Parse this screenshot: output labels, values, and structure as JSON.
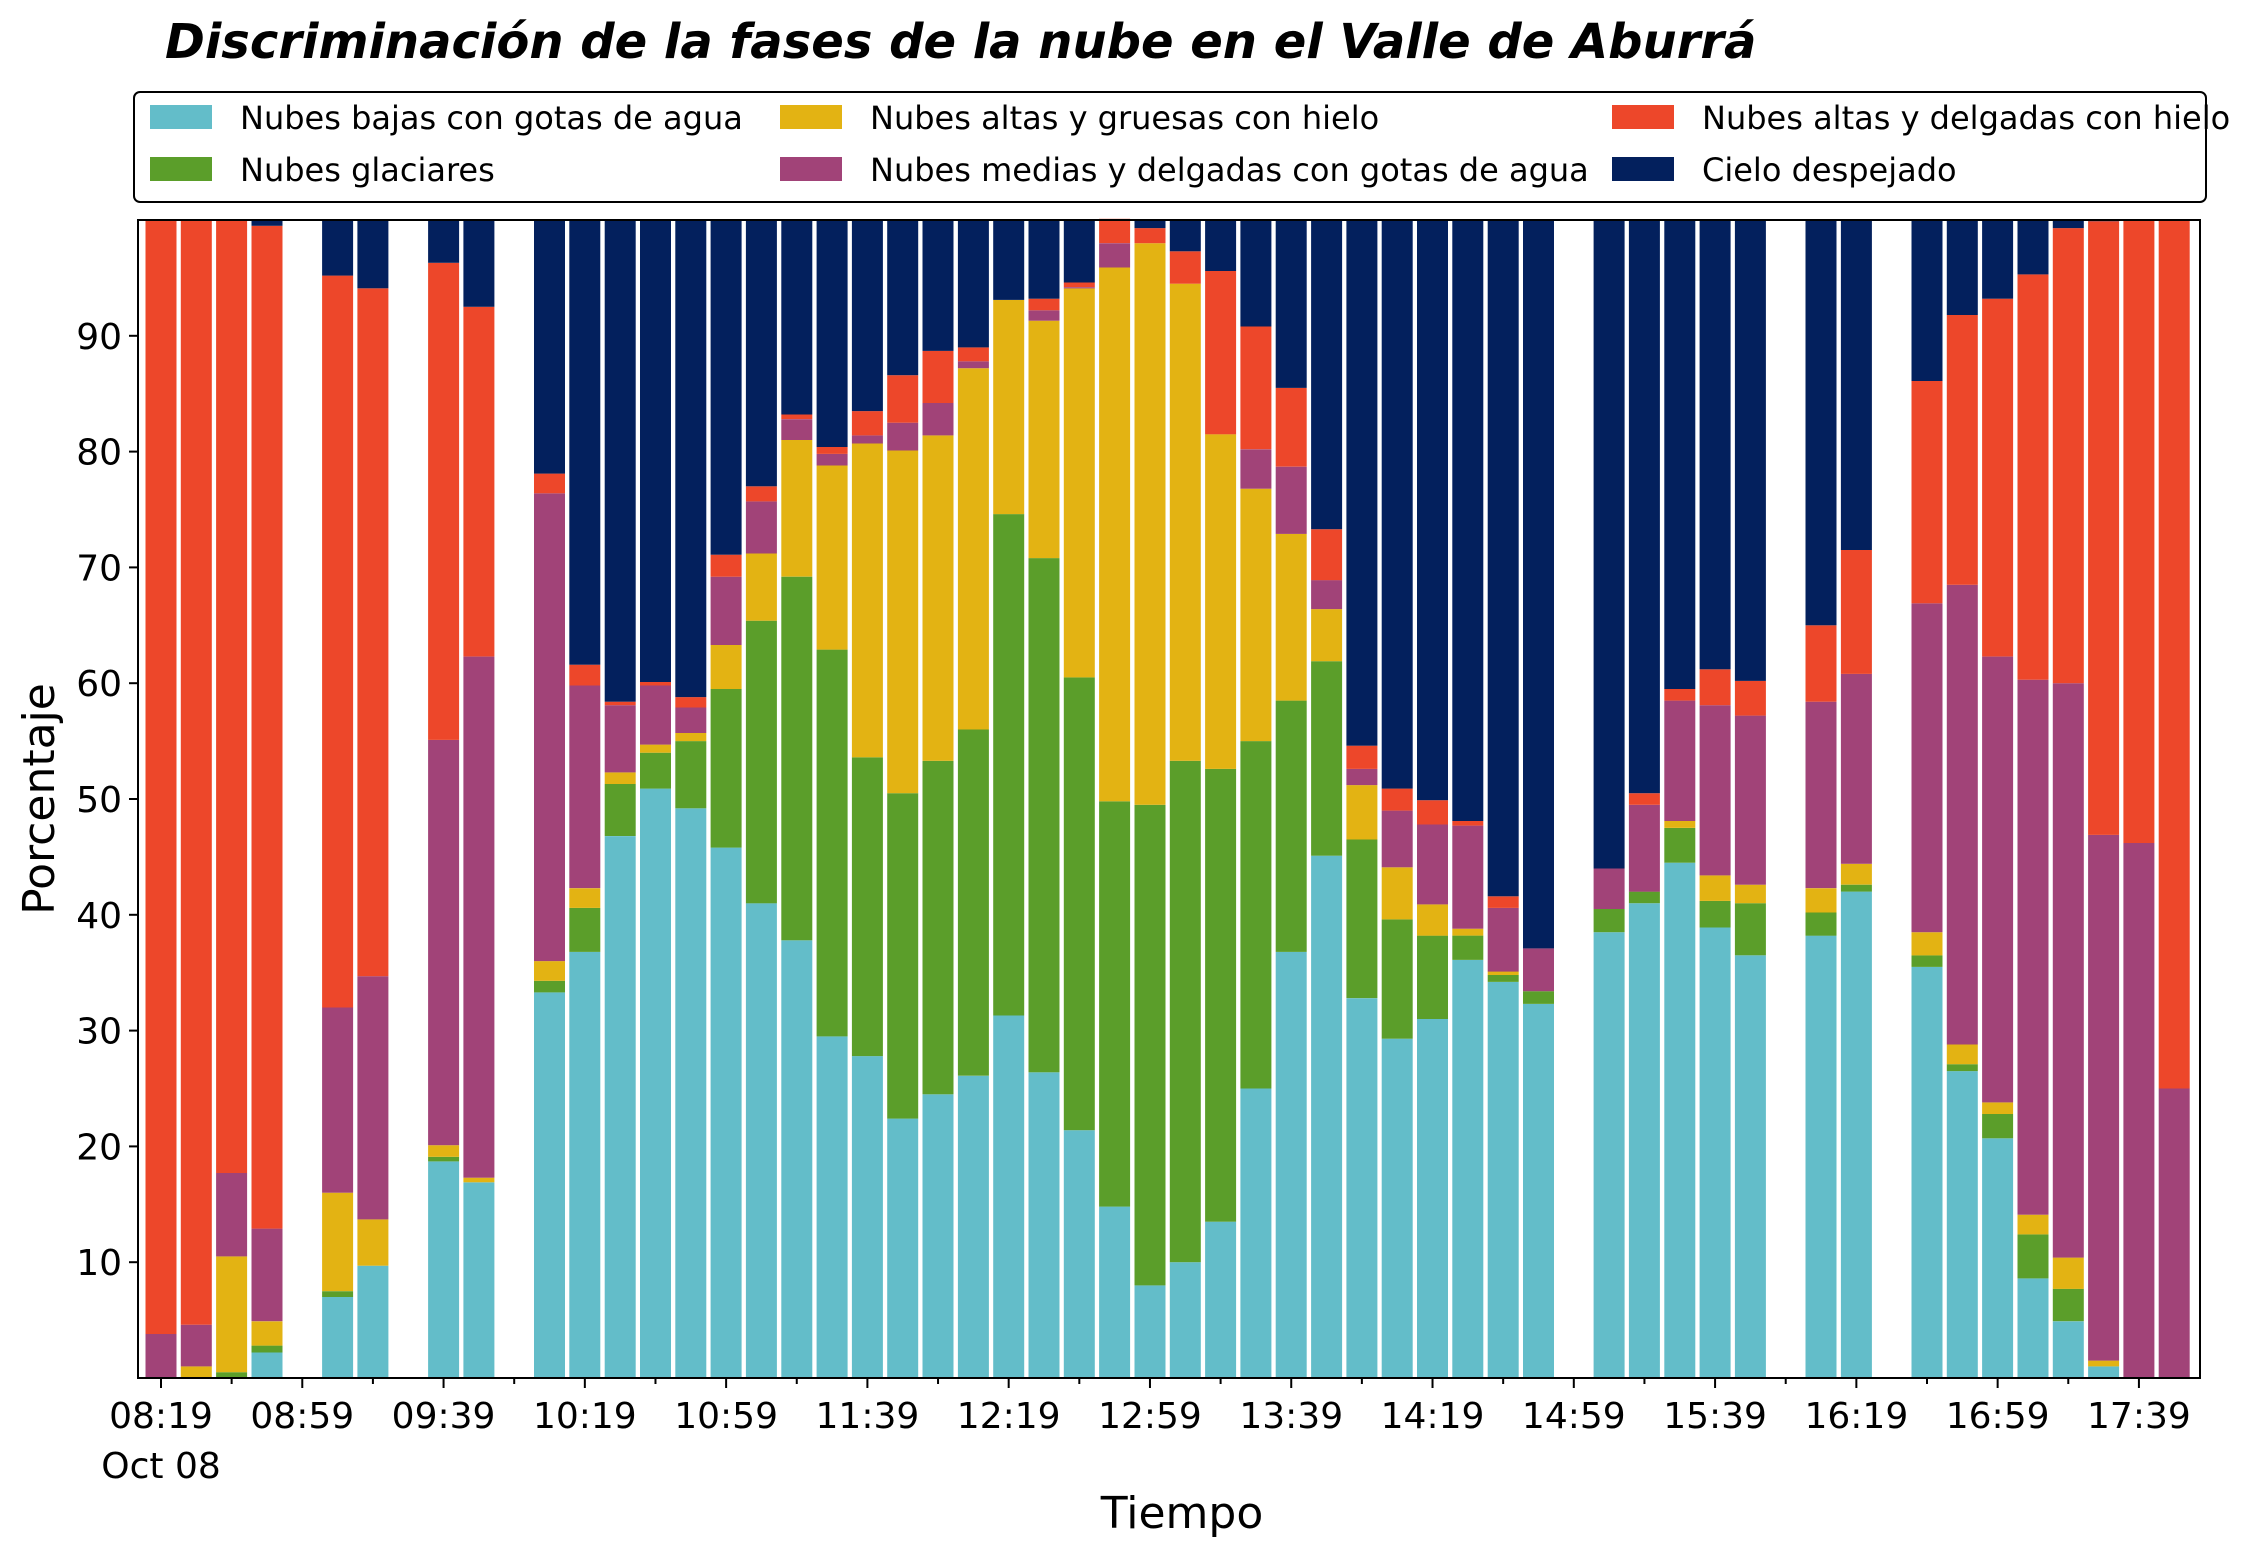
{
  "chart_data": {
    "type": "bar",
    "stacked": true,
    "title": "Discriminación de la fases de la nube en el Valle de Aburrá",
    "xlabel": "Tiempo",
    "ylabel": "Porcentaje",
    "ylim": [
      0,
      100
    ],
    "yticks": [
      10,
      20,
      30,
      40,
      50,
      60,
      70,
      80,
      90
    ],
    "xticks": [
      {
        "minute": 0,
        "label": "08:19",
        "sublabel": "Oct 08"
      },
      {
        "minute": 40,
        "label": "08:59",
        "sublabel": ""
      },
      {
        "minute": 80,
        "label": "09:39",
        "sublabel": ""
      },
      {
        "minute": 120,
        "label": "10:19",
        "sublabel": ""
      },
      {
        "minute": 160,
        "label": "10:59",
        "sublabel": ""
      },
      {
        "minute": 200,
        "label": "11:39",
        "sublabel": ""
      },
      {
        "minute": 240,
        "label": "12:19",
        "sublabel": ""
      },
      {
        "minute": 280,
        "label": "12:59",
        "sublabel": ""
      },
      {
        "minute": 320,
        "label": "13:39",
        "sublabel": ""
      },
      {
        "minute": 360,
        "label": "14:19",
        "sublabel": ""
      },
      {
        "minute": 400,
        "label": "14:59",
        "sublabel": ""
      },
      {
        "minute": 440,
        "label": "15:39",
        "sublabel": ""
      },
      {
        "minute": 480,
        "label": "16:19",
        "sublabel": ""
      },
      {
        "minute": 520,
        "label": "16:59",
        "sublabel": ""
      },
      {
        "minute": 560,
        "label": "17:39",
        "sublabel": ""
      }
    ],
    "legend_placement": "top",
    "grid": false,
    "series": [
      {
        "name": "Nubes bajas con gotas de agua",
        "color": "#63bdc9"
      },
      {
        "name": "Nubes glaciares",
        "color": "#5b9e2a"
      },
      {
        "name": "Nubes altas y gruesas con hielo",
        "color": "#e3b313"
      },
      {
        "name": "Nubes medias y delgadas con gotas de agua",
        "color": "#a14378"
      },
      {
        "name": "Nubes altas y delgadas con hielo",
        "color": "#ed472a"
      },
      {
        "name": "Cielo despejado",
        "color": "#03205d"
      }
    ],
    "bars": [
      {
        "t": "08:19",
        "values": [
          0,
          0,
          0,
          3.8,
          96.2,
          0
        ]
      },
      {
        "t": "08:29",
        "values": [
          0,
          0,
          1,
          3.6,
          95.4,
          0
        ]
      },
      {
        "t": "08:39",
        "values": [
          0,
          0.5,
          10,
          7.2,
          82.3,
          0
        ]
      },
      {
        "t": "08:49",
        "values": [
          2.2,
          0.6,
          2.1,
          8,
          86.6,
          0.5
        ]
      },
      {
        "t": "09:09",
        "values": [
          7,
          0.5,
          8.5,
          16,
          63.2,
          4.8
        ]
      },
      {
        "t": "09:19",
        "values": [
          9.7,
          0,
          4,
          21,
          59.4,
          5.9
        ]
      },
      {
        "t": "09:39",
        "values": [
          18.7,
          0.4,
          1,
          35,
          41.2,
          3.7
        ]
      },
      {
        "t": "09:49",
        "values": [
          16.9,
          0,
          0.4,
          45,
          30.2,
          7.5
        ]
      },
      {
        "t": "10:09",
        "values": [
          33.3,
          1,
          1.7,
          40.4,
          1.7,
          21.9
        ]
      },
      {
        "t": "10:19",
        "values": [
          36.8,
          3.8,
          1.7,
          17.5,
          1.8,
          38.4
        ]
      },
      {
        "t": "10:29",
        "values": [
          46.8,
          4.5,
          1,
          5.8,
          0.3,
          41.6
        ]
      },
      {
        "t": "10:39",
        "values": [
          50.9,
          3.1,
          0.7,
          5.1,
          0.3,
          39.9
        ]
      },
      {
        "t": "10:49",
        "values": [
          49.2,
          5.8,
          0.7,
          2.2,
          0.9,
          41.2
        ]
      },
      {
        "t": "10:59",
        "values": [
          45.8,
          13.7,
          3.8,
          5.9,
          1.9,
          28.9
        ]
      },
      {
        "t": "11:09",
        "values": [
          41,
          24.4,
          5.8,
          4.5,
          1.3,
          23
        ]
      },
      {
        "t": "11:19",
        "values": [
          37.8,
          31.4,
          11.8,
          1.8,
          0.4,
          16.8
        ]
      },
      {
        "t": "11:29",
        "values": [
          29.5,
          33.4,
          15.9,
          1,
          0.6,
          19.6
        ]
      },
      {
        "t": "11:39",
        "values": [
          27.8,
          25.8,
          27.1,
          0.7,
          2.1,
          16.5
        ]
      },
      {
        "t": "11:49",
        "values": [
          22.4,
          28.1,
          29.6,
          2.4,
          4.1,
          13.4
        ]
      },
      {
        "t": "11:59",
        "values": [
          24.5,
          28.8,
          28.1,
          2.8,
          4.5,
          11.3
        ]
      },
      {
        "t": "12:09",
        "values": [
          26.1,
          29.9,
          31.2,
          0.6,
          1.2,
          11
        ]
      },
      {
        "t": "12:19",
        "values": [
          31.3,
          43.3,
          18.5,
          0,
          0,
          6.9
        ]
      },
      {
        "t": "12:29",
        "values": [
          26.4,
          44.4,
          20.5,
          0.9,
          1,
          6.8
        ]
      },
      {
        "t": "12:39",
        "values": [
          21.4,
          39.1,
          33.6,
          0.1,
          0.4,
          5.4
        ]
      },
      {
        "t": "12:49",
        "values": [
          14.8,
          35,
          46.1,
          2.1,
          2.1,
          0
        ]
      },
      {
        "t": "12:59",
        "values": [
          8,
          41.5,
          48.5,
          0,
          1.3,
          0.7
        ]
      },
      {
        "t": "13:09",
        "values": [
          10,
          43.3,
          41.2,
          0,
          2.8,
          2.7
        ]
      },
      {
        "t": "13:19",
        "values": [
          13.5,
          39.1,
          28.9,
          0,
          14.1,
          4.4
        ]
      },
      {
        "t": "13:29",
        "values": [
          25,
          30,
          21.8,
          3.4,
          10.6,
          9.2
        ]
      },
      {
        "t": "13:39",
        "values": [
          36.8,
          21.7,
          14.4,
          5.8,
          6.8,
          14.5
        ]
      },
      {
        "t": "13:49",
        "values": [
          45.1,
          16.8,
          4.5,
          2.5,
          4.4,
          26.7
        ]
      },
      {
        "t": "13:59",
        "values": [
          32.8,
          13.7,
          4.7,
          1.4,
          2,
          45.4
        ]
      },
      {
        "t": "14:09",
        "values": [
          29.3,
          10.3,
          4.5,
          4.9,
          1.9,
          49.1
        ]
      },
      {
        "t": "14:19",
        "values": [
          31,
          7.2,
          2.7,
          6.9,
          2.1,
          50.1
        ]
      },
      {
        "t": "14:29",
        "values": [
          36.1,
          2.1,
          0.6,
          8.9,
          0.4,
          51.9
        ]
      },
      {
        "t": "14:39",
        "values": [
          34.2,
          0.6,
          0.3,
          5.5,
          1,
          58.4
        ]
      },
      {
        "t": "14:49",
        "values": [
          32.3,
          1.1,
          0,
          3.7,
          0,
          62.9
        ]
      },
      {
        "t": "15:09",
        "values": [
          38.5,
          2,
          0,
          3.5,
          0,
          56
        ]
      },
      {
        "t": "15:19",
        "values": [
          41,
          1,
          0,
          7.5,
          1,
          49.5
        ]
      },
      {
        "t": "15:29",
        "values": [
          44.5,
          3,
          0.6,
          10.4,
          1,
          40.5
        ]
      },
      {
        "t": "15:39",
        "values": [
          38.9,
          2.3,
          2.2,
          14.7,
          3.1,
          38.8
        ]
      },
      {
        "t": "15:49",
        "values": [
          36.5,
          4.5,
          1.6,
          14.6,
          3,
          39.8
        ]
      },
      {
        "t": "16:09",
        "values": [
          38.2,
          2,
          2.1,
          16.1,
          6.6,
          35
        ]
      },
      {
        "t": "16:19",
        "values": [
          42,
          0.6,
          1.8,
          16.4,
          10.7,
          28.5
        ]
      },
      {
        "t": "16:39",
        "values": [
          35.5,
          1,
          2,
          28.4,
          19.2,
          13.9
        ]
      },
      {
        "t": "16:49",
        "values": [
          26.5,
          0.6,
          1.7,
          39.7,
          23.3,
          8.2
        ]
      },
      {
        "t": "16:59",
        "values": [
          20.7,
          2.1,
          1,
          38.5,
          30.9,
          6.8
        ]
      },
      {
        "t": "17:09",
        "values": [
          8.6,
          3.8,
          1.7,
          46.2,
          35,
          4.7
        ]
      },
      {
        "t": "17:19",
        "values": [
          4.9,
          2.8,
          2.7,
          49.6,
          39.3,
          0.7
        ]
      },
      {
        "t": "17:29",
        "values": [
          1,
          0,
          0.5,
          45.4,
          53,
          0.1
        ]
      },
      {
        "t": "17:39",
        "values": [
          0,
          0,
          0,
          46.2,
          53.8,
          0
        ]
      },
      {
        "t": "17:49",
        "values": [
          0,
          0,
          0,
          25,
          75,
          0
        ]
      }
    ]
  }
}
